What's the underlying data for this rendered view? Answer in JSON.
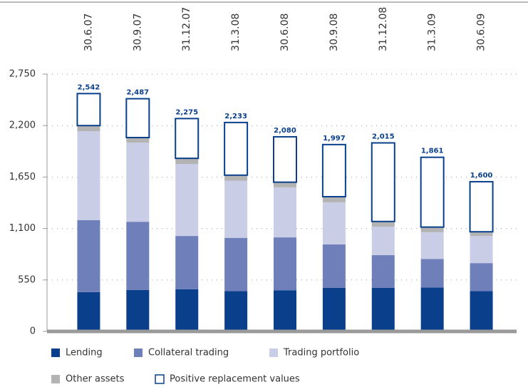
{
  "chart_data": {
    "type": "stacked_bar",
    "categories": [
      "30.6.07",
      "30.9.07",
      "31.12.07",
      "31.3.08",
      "30.6.08",
      "30.9.08",
      "31.12.08",
      "31.3.09",
      "30.6.09"
    ],
    "series": [
      {
        "name": "Lending",
        "color": "#0a3f8c",
        "values": [
          420,
          442,
          450,
          430,
          440,
          465,
          465,
          470,
          430
        ]
      },
      {
        "name": "Collateral trading",
        "color": "#6f7fba",
        "values": [
          770,
          730,
          570,
          570,
          565,
          465,
          350,
          305,
          300
        ]
      },
      {
        "name": "Trading portfolio",
        "color": "#c9cde6",
        "values": [
          950,
          845,
          770,
          610,
          535,
          450,
          305,
          285,
          290
        ]
      },
      {
        "name": "Other assets",
        "color": "#b3b3b3",
        "values": [
          60,
          55,
          60,
          60,
          55,
          60,
          55,
          55,
          45
        ]
      },
      {
        "name": "Positive replacement values",
        "color": "#0a3f8c",
        "fill": "#ffffff",
        "values": [
          342,
          415,
          425,
          563,
          485,
          557,
          840,
          746,
          535
        ]
      }
    ],
    "totals": [
      2542,
      2487,
      2275,
      2233,
      2080,
      1997,
      2015,
      1861,
      1600
    ],
    "total_labels": [
      "2,542",
      "2,487",
      "2,275",
      "2,233",
      "2,080",
      "1,997",
      "2,015",
      "1,861",
      "1,600"
    ],
    "ylim": [
      0,
      2750
    ],
    "yticks": [
      0,
      550,
      {
        "value": 1100,
        "label": "1,100"
      },
      {
        "value": 1650,
        "label": "1,650"
      },
      {
        "value": 2200,
        "label": "2,200"
      },
      {
        "value": 2750,
        "label": "2,750"
      }
    ],
    "grid": true
  }
}
